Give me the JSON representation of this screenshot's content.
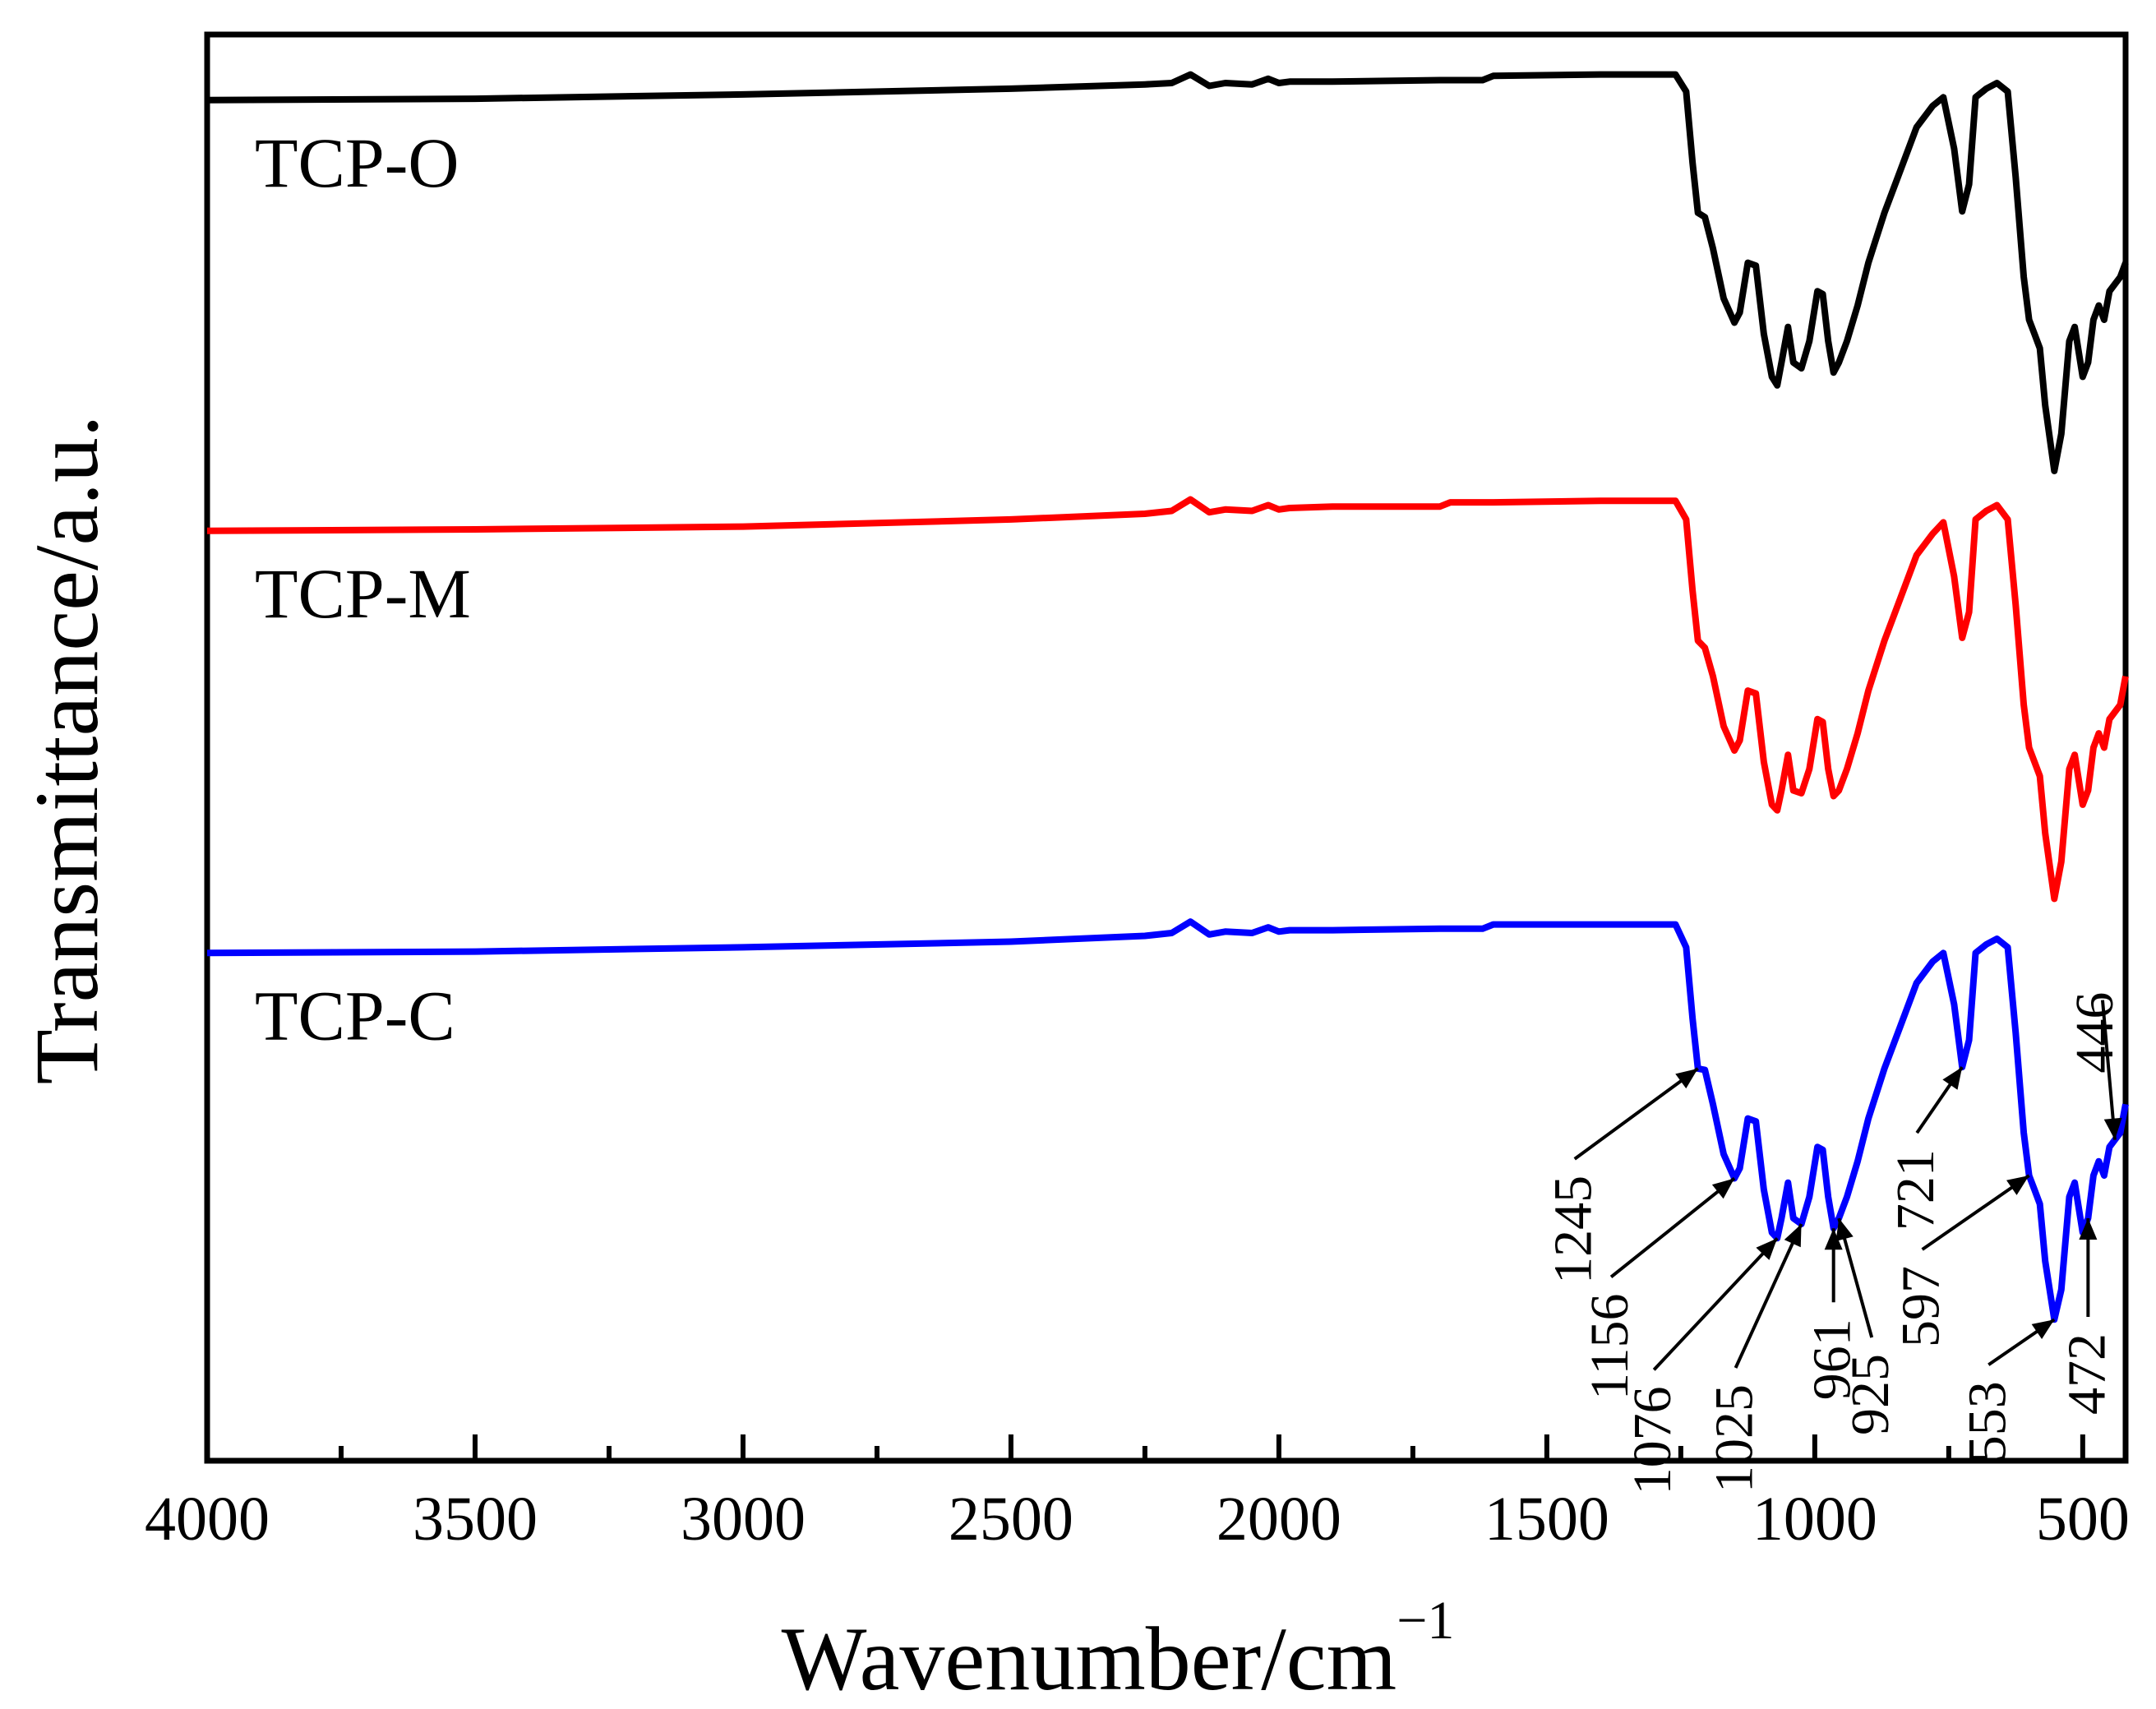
{
  "chart_data": {
    "type": "line",
    "title": "",
    "xlabel": "Wavenumber/cm",
    "xlabel_exponent": "−1",
    "ylabel": "Transmittance/a.u.",
    "xlim": [
      4000,
      420
    ],
    "x_reversed": true,
    "ylim": [
      0,
      100
    ],
    "y_ticks_shown": false,
    "grid": false,
    "legend": "labels placed beside each curve",
    "x_ticks": [
      4000,
      3500,
      3000,
      2500,
      2000,
      1500,
      1000,
      500
    ],
    "x_tick_labels": [
      "4000",
      "3500",
      "3000",
      "2500",
      "2000",
      "1500",
      "1000",
      "500"
    ],
    "series": [
      {
        "name": "TCP-O",
        "color": "#000000",
        "points": [
          [
            4000,
            95.4
          ],
          [
            3500,
            95.5
          ],
          [
            3000,
            95.8
          ],
          [
            2500,
            96.2
          ],
          [
            2250,
            96.5
          ],
          [
            2200,
            96.6
          ],
          [
            2165,
            97.2
          ],
          [
            2130,
            96.4
          ],
          [
            2100,
            96.6
          ],
          [
            2050,
            96.5
          ],
          [
            2020,
            96.9
          ],
          [
            2000,
            96.6
          ],
          [
            1980,
            96.7
          ],
          [
            1900,
            96.7
          ],
          [
            1700,
            96.8
          ],
          [
            1620,
            96.8
          ],
          [
            1600,
            97.1
          ],
          [
            1400,
            97.2
          ],
          [
            1260,
            97.2
          ],
          [
            1240,
            96.0
          ],
          [
            1228,
            91.0
          ],
          [
            1218,
            87.5
          ],
          [
            1205,
            87.2
          ],
          [
            1190,
            85.0
          ],
          [
            1170,
            81.5
          ],
          [
            1150,
            79.8
          ],
          [
            1140,
            80.5
          ],
          [
            1125,
            84.0
          ],
          [
            1110,
            83.8
          ],
          [
            1095,
            79.0
          ],
          [
            1080,
            76.0
          ],
          [
            1070,
            75.4
          ],
          [
            1062,
            77.0
          ],
          [
            1050,
            79.5
          ],
          [
            1040,
            77.0
          ],
          [
            1025,
            76.6
          ],
          [
            1010,
            78.5
          ],
          [
            995,
            82.0
          ],
          [
            985,
            81.8
          ],
          [
            975,
            78.5
          ],
          [
            965,
            76.3
          ],
          [
            955,
            77.0
          ],
          [
            940,
            78.5
          ],
          [
            920,
            81.0
          ],
          [
            900,
            84.0
          ],
          [
            870,
            87.5
          ],
          [
            840,
            90.5
          ],
          [
            810,
            93.5
          ],
          [
            780,
            95.0
          ],
          [
            760,
            95.6
          ],
          [
            740,
            92.0
          ],
          [
            725,
            87.6
          ],
          [
            712,
            89.5
          ],
          [
            700,
            95.6
          ],
          [
            680,
            96.2
          ],
          [
            660,
            96.6
          ],
          [
            640,
            96.0
          ],
          [
            625,
            90.0
          ],
          [
            610,
            83.0
          ],
          [
            600,
            80.0
          ],
          [
            590,
            79.0
          ],
          [
            580,
            78.0
          ],
          [
            570,
            74.0
          ],
          [
            553,
            69.4
          ],
          [
            540,
            72.0
          ],
          [
            525,
            78.5
          ],
          [
            515,
            79.5
          ],
          [
            500,
            76.0
          ],
          [
            490,
            77.0
          ],
          [
            480,
            80.0
          ],
          [
            470,
            81.0
          ],
          [
            460,
            80.0
          ],
          [
            450,
            82.0
          ],
          [
            440,
            82.5
          ],
          [
            430,
            83.0
          ],
          [
            420,
            84.0
          ]
        ]
      },
      {
        "name": "TCP-M",
        "color": "#ff0000",
        "points": [
          [
            4000,
            65.2
          ],
          [
            3500,
            65.3
          ],
          [
            3000,
            65.5
          ],
          [
            2500,
            66.0
          ],
          [
            2250,
            66.4
          ],
          [
            2200,
            66.6
          ],
          [
            2165,
            67.4
          ],
          [
            2130,
            66.5
          ],
          [
            2100,
            66.7
          ],
          [
            2050,
            66.6
          ],
          [
            2020,
            67.0
          ],
          [
            2000,
            66.7
          ],
          [
            1980,
            66.8
          ],
          [
            1900,
            66.9
          ],
          [
            1700,
            66.9
          ],
          [
            1680,
            67.2
          ],
          [
            1600,
            67.2
          ],
          [
            1400,
            67.3
          ],
          [
            1260,
            67.3
          ],
          [
            1240,
            66.0
          ],
          [
            1228,
            61.0
          ],
          [
            1218,
            57.5
          ],
          [
            1205,
            57.0
          ],
          [
            1190,
            55.0
          ],
          [
            1170,
            51.5
          ],
          [
            1150,
            49.8
          ],
          [
            1140,
            50.5
          ],
          [
            1125,
            54.0
          ],
          [
            1110,
            53.8
          ],
          [
            1095,
            49.0
          ],
          [
            1080,
            46.0
          ],
          [
            1070,
            45.6
          ],
          [
            1062,
            47.0
          ],
          [
            1050,
            49.5
          ],
          [
            1040,
            47.0
          ],
          [
            1025,
            46.8
          ],
          [
            1010,
            48.5
          ],
          [
            995,
            52.0
          ],
          [
            985,
            51.8
          ],
          [
            975,
            48.5
          ],
          [
            965,
            46.6
          ],
          [
            955,
            47.0
          ],
          [
            940,
            48.5
          ],
          [
            920,
            51.0
          ],
          [
            900,
            54.0
          ],
          [
            870,
            57.5
          ],
          [
            840,
            60.5
          ],
          [
            810,
            63.5
          ],
          [
            780,
            65.0
          ],
          [
            760,
            65.8
          ],
          [
            740,
            62.0
          ],
          [
            725,
            57.7
          ],
          [
            712,
            59.5
          ],
          [
            700,
            66.0
          ],
          [
            680,
            66.6
          ],
          [
            660,
            67.0
          ],
          [
            640,
            66.0
          ],
          [
            625,
            60.0
          ],
          [
            610,
            53.0
          ],
          [
            600,
            50.0
          ],
          [
            590,
            49.0
          ],
          [
            580,
            48.0
          ],
          [
            570,
            44.0
          ],
          [
            553,
            39.4
          ],
          [
            540,
            42.0
          ],
          [
            525,
            48.5
          ],
          [
            515,
            49.5
          ],
          [
            500,
            46.0
          ],
          [
            490,
            47.0
          ],
          [
            480,
            50.0
          ],
          [
            470,
            51.0
          ],
          [
            460,
            50.0
          ],
          [
            450,
            52.0
          ],
          [
            440,
            52.5
          ],
          [
            430,
            53.0
          ],
          [
            420,
            55.0
          ]
        ]
      },
      {
        "name": "TCP-C",
        "color": "#0000ff",
        "points": [
          [
            4000,
            35.6
          ],
          [
            3500,
            35.7
          ],
          [
            3000,
            36.0
          ],
          [
            2500,
            36.4
          ],
          [
            2250,
            36.8
          ],
          [
            2200,
            37.0
          ],
          [
            2165,
            37.8
          ],
          [
            2130,
            36.9
          ],
          [
            2100,
            37.1
          ],
          [
            2050,
            37.0
          ],
          [
            2020,
            37.4
          ],
          [
            2000,
            37.1
          ],
          [
            1980,
            37.2
          ],
          [
            1900,
            37.2
          ],
          [
            1700,
            37.3
          ],
          [
            1620,
            37.3
          ],
          [
            1600,
            37.6
          ],
          [
            1400,
            37.6
          ],
          [
            1260,
            37.6
          ],
          [
            1240,
            36.0
          ],
          [
            1228,
            31.0
          ],
          [
            1218,
            27.5
          ],
          [
            1205,
            27.4
          ],
          [
            1190,
            25.0
          ],
          [
            1170,
            21.5
          ],
          [
            1150,
            19.8
          ],
          [
            1140,
            20.5
          ],
          [
            1125,
            24.0
          ],
          [
            1110,
            23.8
          ],
          [
            1095,
            19.0
          ],
          [
            1080,
            16.0
          ],
          [
            1070,
            15.6
          ],
          [
            1062,
            17.0
          ],
          [
            1050,
            19.5
          ],
          [
            1040,
            17.0
          ],
          [
            1025,
            16.6
          ],
          [
            1010,
            18.5
          ],
          [
            995,
            22.0
          ],
          [
            985,
            21.8
          ],
          [
            975,
            18.5
          ],
          [
            965,
            16.3
          ],
          [
            955,
            17.0
          ],
          [
            940,
            18.5
          ],
          [
            920,
            21.0
          ],
          [
            900,
            24.0
          ],
          [
            870,
            27.5
          ],
          [
            840,
            30.5
          ],
          [
            810,
            33.5
          ],
          [
            780,
            35.0
          ],
          [
            760,
            35.6
          ],
          [
            740,
            32.0
          ],
          [
            725,
            27.6
          ],
          [
            712,
            29.5
          ],
          [
            700,
            35.6
          ],
          [
            680,
            36.2
          ],
          [
            660,
            36.6
          ],
          [
            640,
            36.0
          ],
          [
            625,
            30.0
          ],
          [
            610,
            23.0
          ],
          [
            600,
            20.0
          ],
          [
            590,
            19.0
          ],
          [
            580,
            18.0
          ],
          [
            570,
            14.0
          ],
          [
            553,
            9.9
          ],
          [
            540,
            12.0
          ],
          [
            525,
            18.5
          ],
          [
            515,
            19.5
          ],
          [
            500,
            16.0
          ],
          [
            490,
            17.0
          ],
          [
            480,
            20.0
          ],
          [
            470,
            21.0
          ],
          [
            460,
            20.0
          ],
          [
            450,
            22.0
          ],
          [
            440,
            22.5
          ],
          [
            430,
            23.0
          ],
          [
            420,
            25.0
          ]
        ]
      }
    ],
    "annotations": [
      {
        "label": "1245",
        "x": 1218,
        "y": 27.5
      },
      {
        "label": "1156",
        "x": 1150,
        "y": 19.8
      },
      {
        "label": "1076",
        "x": 1070,
        "y": 15.6
      },
      {
        "label": "1025",
        "x": 1025,
        "y": 16.6
      },
      {
        "label": "961",
        "x": 965,
        "y": 16.3
      },
      {
        "label": "925",
        "x": 955,
        "y": 17.0
      },
      {
        "label": "721",
        "x": 725,
        "y": 27.6
      },
      {
        "label": "597",
        "x": 600,
        "y": 20.0
      },
      {
        "label": "553",
        "x": 553,
        "y": 9.9
      },
      {
        "label": "472",
        "x": 490,
        "y": 17.0
      },
      {
        "label": "446",
        "x": 440,
        "y": 22.5
      }
    ]
  }
}
